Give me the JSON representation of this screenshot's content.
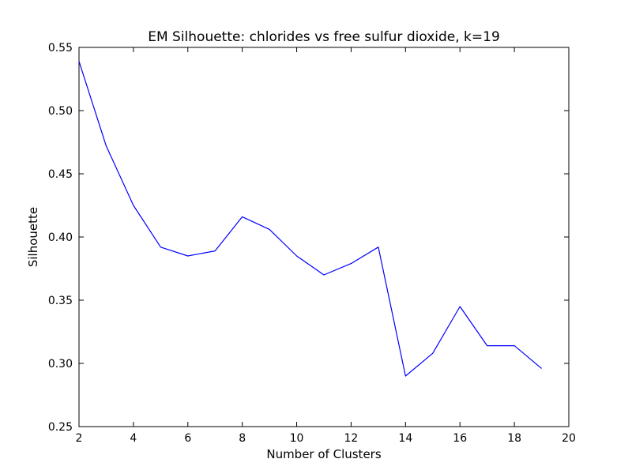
{
  "chart_data": {
    "type": "line",
    "title": "EM Silhouette: chlorides vs free sulfur dioxide, k=19",
    "xlabel": "Number of Clusters",
    "ylabel": "Silhouette",
    "xlim": [
      2,
      20
    ],
    "ylim": [
      0.25,
      0.55
    ],
    "xticks": [
      2,
      4,
      6,
      8,
      10,
      12,
      14,
      16,
      18,
      20
    ],
    "yticks": [
      0.25,
      0.3,
      0.35,
      0.4,
      0.45,
      0.5,
      0.55
    ],
    "xtick_labels": [
      "2",
      "4",
      "6",
      "8",
      "10",
      "12",
      "14",
      "16",
      "18",
      "20"
    ],
    "ytick_labels": [
      "0.25",
      "0.30",
      "0.35",
      "0.40",
      "0.45",
      "0.50",
      "0.55"
    ],
    "grid": false,
    "line_color": "#0000ff",
    "x": [
      2,
      3,
      4,
      5,
      6,
      7,
      8,
      9,
      10,
      11,
      12,
      13,
      14,
      15,
      16,
      17,
      18,
      19
    ],
    "values": [
      0.539,
      0.472,
      0.425,
      0.392,
      0.385,
      0.389,
      0.416,
      0.406,
      0.385,
      0.37,
      0.379,
      0.392,
      0.29,
      0.308,
      0.345,
      0.314,
      0.314,
      0.296
    ]
  }
}
